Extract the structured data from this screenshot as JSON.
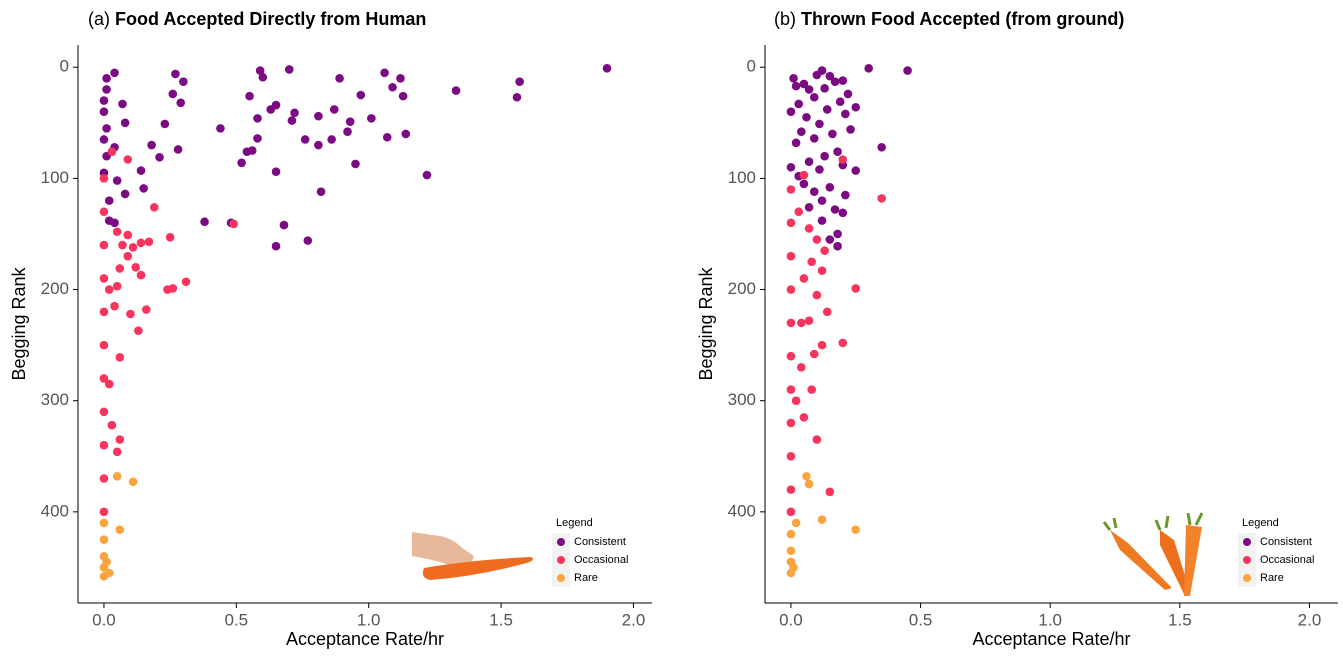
{
  "chart_data": [
    {
      "type": "scatter",
      "label": "(a)",
      "title": "Food Accepted Directly from Human",
      "xlabel": "Acceptance Rate/hr",
      "ylabel": "Begging Rank",
      "xlim": [
        -0.098,
        2.07
      ],
      "ylim": [
        482,
        -20
      ],
      "xticks": [
        {
          "value": 0,
          "label": "0.0"
        },
        {
          "value": 0.5,
          "label": "0.5"
        },
        {
          "value": 1,
          "label": "1.0"
        },
        {
          "value": 1.5,
          "label": "1.5"
        },
        {
          "value": 2,
          "label": "2.0"
        }
      ],
      "yticks": [
        0,
        100,
        200,
        300,
        400
      ],
      "legend_title": "Legend",
      "legend_position": "bottom-right",
      "series": [
        {
          "name": "Consistent",
          "color": "#7b0a83",
          "x": [
            1.9,
            0.7,
            0.59,
            0.27,
            0.04,
            1.06,
            0.6,
            0.89,
            1.12,
            0.3,
            1.57,
            1.09,
            1.33,
            0.97,
            1.13,
            0.55,
            0.26,
            0.65,
            0.29,
            0.23,
            0.07,
            0.63,
            0.87,
            0.72,
            0.81,
            0.58,
            1.01,
            0.71,
            0.93,
            0.08,
            0.92,
            1.14,
            0.44,
            0.58,
            0.86,
            0.76,
            0.81,
            0.18,
            0.28,
            0.04,
            1.07,
            0.56,
            0.54,
            0.52,
            0.95,
            0.21,
            0.14,
            0.65,
            1.22,
            0.05,
            0.08,
            0.15,
            0.82,
            0.38,
            0.68,
            0.77,
            0.65,
            0.01,
            0.01,
            0.0,
            0.0,
            0.01,
            0.0,
            0.01,
            0.0,
            0.02,
            0.02,
            0.04,
            1.56,
            0.48
          ],
          "values": [
            1,
            2,
            3,
            6,
            5,
            5,
            9,
            10,
            10,
            13,
            13,
            18,
            21,
            25,
            26,
            26,
            24,
            34,
            32,
            51,
            33,
            38,
            38,
            41,
            44,
            46,
            46,
            48,
            49,
            50,
            58,
            60,
            55,
            64,
            65,
            65,
            70,
            70,
            74,
            72,
            63,
            75,
            76,
            86,
            87,
            81,
            93,
            94,
            97,
            102,
            114,
            109,
            112,
            139,
            142,
            156,
            161,
            10,
            20,
            30,
            40,
            55,
            65,
            80,
            95,
            120,
            138,
            140,
            27,
            140
          ]
        },
        {
          "name": "Occasional",
          "color": "#f7345e",
          "x": [
            0.49,
            0.09,
            0.03,
            0.19,
            0.05,
            0.09,
            0.14,
            0.17,
            0.25,
            0.07,
            0.11,
            0.09,
            0.12,
            0.14,
            0.06,
            0.26,
            0.24,
            0.31,
            0.05,
            0.16,
            0.1,
            0.13,
            0.06,
            0.02,
            0.03,
            0.06,
            0.05,
            0.0,
            0.0,
            0.0,
            0.0,
            0.0,
            0.0,
            0.0,
            0.0,
            0.0,
            0.0,
            0.0,
            0.02,
            0.04
          ],
          "values": [
            141,
            83,
            76,
            126,
            148,
            151,
            158,
            157,
            153,
            160,
            162,
            170,
            180,
            187,
            181,
            199,
            200,
            193,
            197,
            218,
            222,
            237,
            261,
            285,
            322,
            335,
            346,
            100,
            130,
            160,
            190,
            220,
            250,
            280,
            310,
            340,
            370,
            400,
            200,
            215
          ]
        },
        {
          "name": "Rare",
          "color": "#f9a43e",
          "x": [
            0.05,
            0.11,
            0.06,
            0.0,
            0.0,
            0.0,
            0.0,
            0.0,
            0.01,
            0.02
          ],
          "values": [
            368,
            373,
            416,
            410,
            425,
            440,
            450,
            458,
            445,
            455
          ]
        }
      ]
    },
    {
      "type": "scatter",
      "label": "(b)",
      "title": "Thrown Food Accepted (from ground)",
      "xlabel": "Acceptance Rate/hr",
      "ylabel": "Begging Rank",
      "xlim": [
        -0.1,
        2.11
      ],
      "ylim": [
        482,
        -20
      ],
      "xticks": [
        {
          "value": 0,
          "label": "0.0"
        },
        {
          "value": 0.5,
          "label": "0.5"
        },
        {
          "value": 1,
          "label": "1.0"
        },
        {
          "value": 1.5,
          "label": "1.5"
        },
        {
          "value": 2,
          "label": "2.0"
        }
      ],
      "yticks": [
        0,
        100,
        200,
        300,
        400
      ],
      "legend_title": "Legend",
      "legend_position": "bottom-right",
      "series": [
        {
          "name": "Consistent",
          "color": "#7b0a83",
          "x": [
            0.45,
            0.3,
            0.12,
            0.1,
            0.15,
            0.17,
            0.2,
            0.05,
            0.02,
            0.07,
            0.13,
            0.22,
            0.09,
            0.19,
            0.25,
            0.03,
            0.14,
            0.21,
            0.06,
            0.11,
            0.23,
            0.04,
            0.16,
            0.09,
            0.02,
            0.35,
            0.18,
            0.13,
            0.07,
            0.2,
            0.25,
            0.11,
            0.03,
            0.05,
            0.15,
            0.21,
            0.07,
            0.17,
            0.2,
            0.12,
            0.18,
            0.15,
            0.18,
            0.01,
            0.0,
            0.0,
            0.09,
            0.12
          ],
          "values": [
            3,
            1,
            3,
            7,
            8,
            13,
            12,
            15,
            17,
            20,
            19,
            24,
            27,
            31,
            36,
            33,
            38,
            42,
            45,
            51,
            56,
            58,
            60,
            64,
            68,
            72,
            76,
            80,
            85,
            88,
            93,
            92,
            98,
            105,
            108,
            115,
            126,
            128,
            131,
            138,
            150,
            155,
            161,
            10,
            40,
            90,
            112,
            120
          ]
        },
        {
          "name": "Occasional",
          "color": "#f7345e",
          "x": [
            0.35,
            0.2,
            0.05,
            0.07,
            0.1,
            0.13,
            0.08,
            0.12,
            0.05,
            0.25,
            0.1,
            0.14,
            0.07,
            0.2,
            0.12,
            0.09,
            0.04,
            0.08,
            0.02,
            0.05,
            0.1,
            0.15,
            0.0,
            0.0,
            0.0,
            0.0,
            0.0,
            0.0,
            0.0,
            0.0,
            0.0,
            0.0,
            0.0,
            0.03,
            0.04
          ],
          "values": [
            118,
            83,
            97,
            145,
            155,
            165,
            175,
            183,
            190,
            199,
            205,
            220,
            228,
            248,
            250,
            258,
            270,
            290,
            300,
            315,
            335,
            382,
            110,
            140,
            170,
            200,
            230,
            260,
            290,
            320,
            350,
            380,
            400,
            130,
            230
          ]
        },
        {
          "name": "Rare",
          "color": "#f9a43e",
          "x": [
            0.06,
            0.07,
            0.12,
            0.25,
            0.02,
            0.0,
            0.0,
            0.0,
            0.0,
            0.01
          ],
          "values": [
            368,
            375,
            407,
            416,
            410,
            420,
            435,
            445,
            455,
            450
          ]
        }
      ]
    }
  ]
}
